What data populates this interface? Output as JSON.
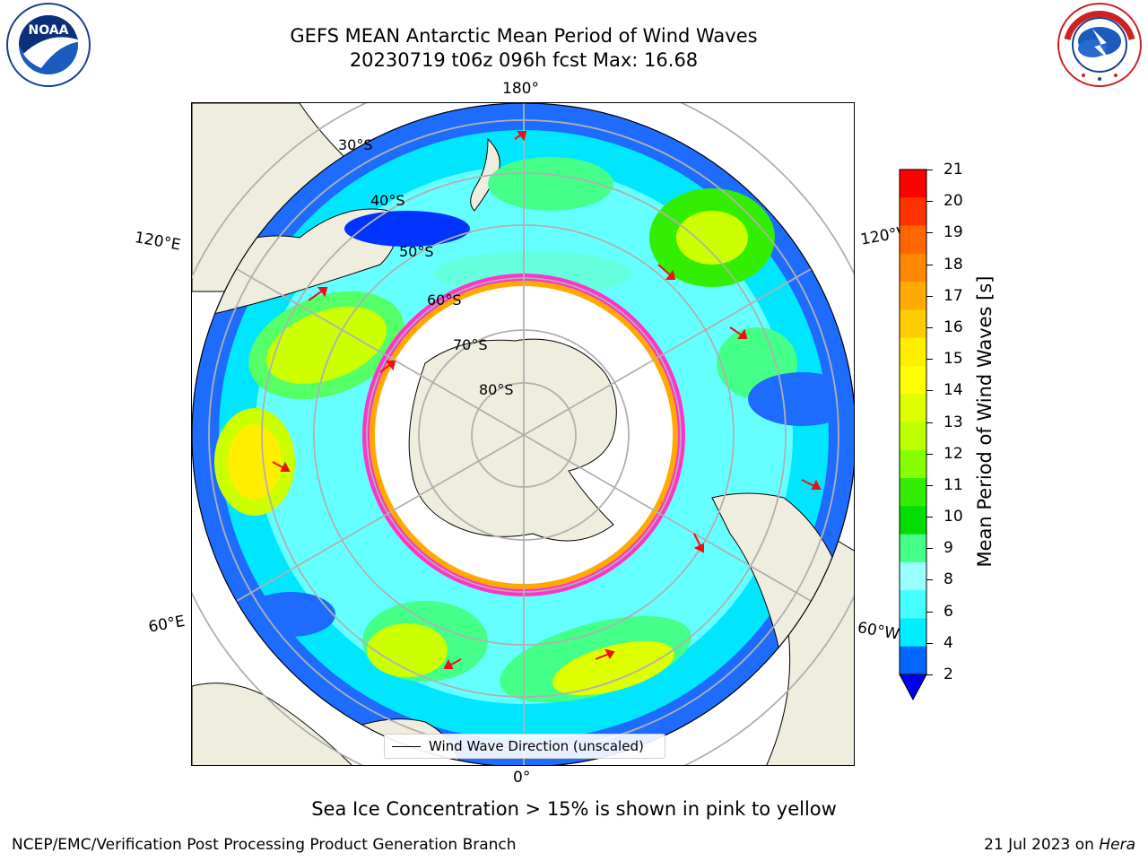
{
  "header": {
    "title_line1": "GEFS MEAN Antarctic Mean Period of Wind Waves",
    "title_line2": "20230719 t06z 096h fcst   Max: 16.68"
  },
  "logos": {
    "left_icon": "noaa-logo-icon",
    "left_text": "NOAA",
    "left_ring_text": "NATIONAL OCEANIC AND ATMOSPHERIC ADMINISTRATION",
    "left_ring_bottom": "U.S. DEPARTMENT OF COMMERCE",
    "right_icon": "nws-logo-icon",
    "right_ring_text": "NATIONAL WEATHER SERVICE"
  },
  "map": {
    "longitude_labels": {
      "top": "180°",
      "bottom": "0°",
      "upper_left": "120°E",
      "upper_right": "120°W",
      "lower_left": "60°E",
      "lower_right": "60°W"
    },
    "latitude_labels": [
      "30°S",
      "40°S",
      "50°S",
      "60°S",
      "70°S",
      "80°S"
    ],
    "legend": "Wind Wave Direction (unscaled)",
    "colors": {
      "land": "#efedde",
      "ocean_low": "#0033ff",
      "arrow": "#ee1111",
      "sea_ice": "#ff33cc",
      "grid": "#b0b0b0"
    }
  },
  "colorbar": {
    "label": "Mean Period of Wind Waves [s]",
    "ticks": [
      "21",
      "20",
      "19",
      "18",
      "17",
      "16",
      "15",
      "14",
      "13",
      "12",
      "11",
      "10",
      "9",
      "8",
      "6",
      "4",
      "2"
    ],
    "colors": [
      "#ff0000",
      "#ff3300",
      "#ff6600",
      "#ff8800",
      "#ffaa00",
      "#ffcc00",
      "#ffee00",
      "#ffff00",
      "#ddff00",
      "#bbff00",
      "#88ff00",
      "#33ee00",
      "#00dd00",
      "#44ff88",
      "#99ffff",
      "#44ffff",
      "#00eeff",
      "#0066ff"
    ],
    "extend_color": "#0000ee"
  },
  "captions": {
    "sub": "Sea Ice Concentration > 15% is shown in pink to yellow",
    "footer_left": "NCEP/EMC/Verification Post Processing Product Generation Branch",
    "footer_right_date": "21 Jul 2023 on ",
    "footer_right_host": "Hera"
  }
}
